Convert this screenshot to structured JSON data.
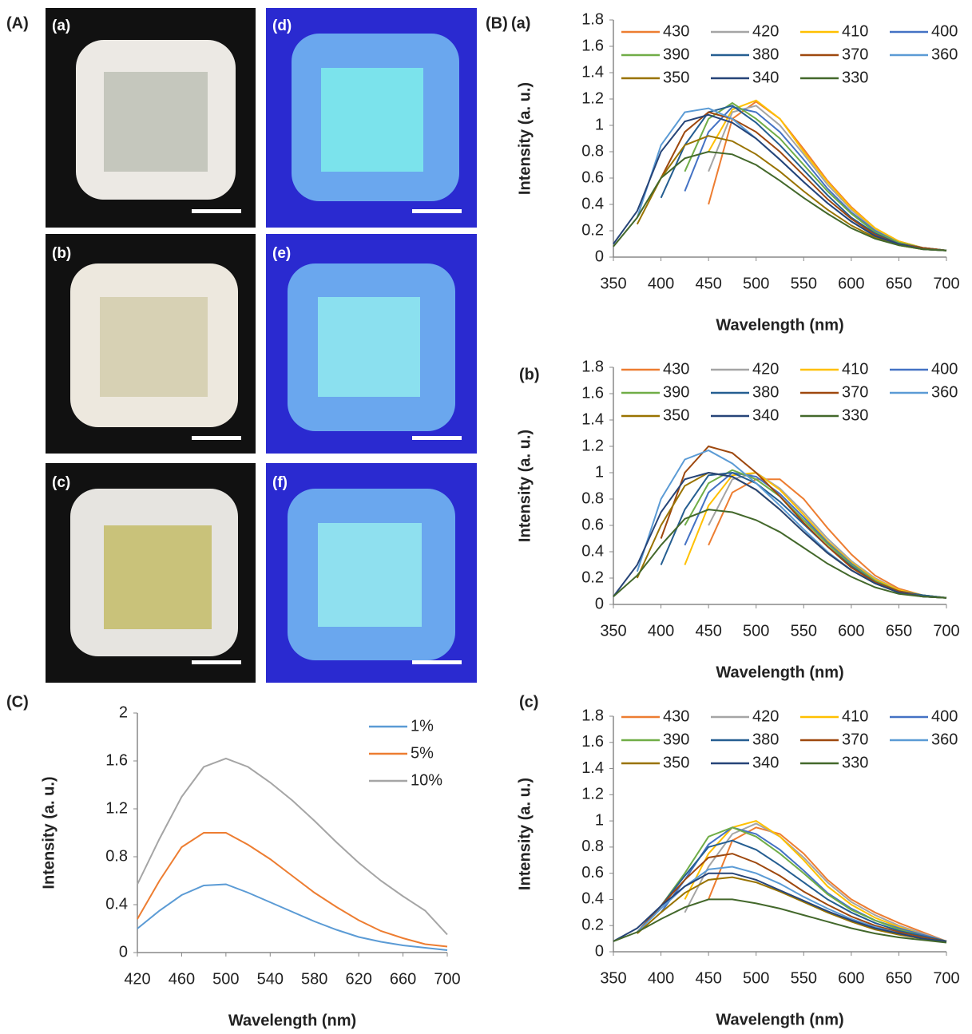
{
  "labels": {
    "panel_A": "(A)",
    "panel_B": "(B)",
    "panel_C": "(C)"
  },
  "photos": [
    {
      "label": "(a)"
    },
    {
      "label": "(b)"
    },
    {
      "label": "(c)"
    },
    {
      "label": "(d)"
    },
    {
      "label": "(e)"
    },
    {
      "label": "(f)"
    }
  ],
  "chart_data": [
    {
      "type": "line",
      "panel": "(a)",
      "x_label": "Wavelength (nm)",
      "y_label": "Intensity (a. u.)",
      "x": [
        350,
        375,
        400,
        425,
        450,
        475,
        500,
        525,
        550,
        575,
        600,
        625,
        650,
        675,
        700
      ],
      "xlim": [
        350,
        700
      ],
      "xticks": [
        350,
        400,
        450,
        500,
        550,
        600,
        650,
        700
      ],
      "ylim": [
        0,
        1.8
      ],
      "yticks": [
        0,
        0.2,
        0.4,
        0.6,
        0.8,
        1,
        1.2,
        1.4,
        1.6,
        1.8
      ],
      "grid": false,
      "legend": "top",
      "series": [
        {
          "name": "430",
          "color": "#ed7d31",
          "values": [
            null,
            null,
            null,
            null,
            0.4,
            1.05,
            1.18,
            1.05,
            0.82,
            0.58,
            0.38,
            0.22,
            0.12,
            0.07,
            0.05
          ]
        },
        {
          "name": "420",
          "color": "#a5a5a5",
          "values": [
            null,
            null,
            null,
            null,
            0.65,
            1.1,
            1.15,
            1.0,
            0.78,
            0.55,
            0.36,
            0.21,
            0.12,
            0.07,
            0.05
          ]
        },
        {
          "name": "410",
          "color": "#ffc000",
          "values": [
            null,
            null,
            null,
            null,
            0.8,
            1.12,
            1.19,
            1.05,
            0.8,
            0.57,
            0.37,
            0.22,
            0.12,
            0.07,
            0.05
          ]
        },
        {
          "name": "400",
          "color": "#4472c4",
          "values": [
            null,
            null,
            null,
            0.5,
            0.95,
            1.14,
            1.1,
            0.95,
            0.74,
            0.52,
            0.34,
            0.2,
            0.11,
            0.07,
            0.05
          ]
        },
        {
          "name": "390",
          "color": "#70ad47",
          "values": [
            null,
            null,
            null,
            0.65,
            1.05,
            1.17,
            1.05,
            0.9,
            0.7,
            0.5,
            0.33,
            0.19,
            0.11,
            0.07,
            0.05
          ]
        },
        {
          "name": "380",
          "color": "#255e91",
          "values": [
            null,
            null,
            0.45,
            0.85,
            1.1,
            1.15,
            1.02,
            0.85,
            0.66,
            0.47,
            0.3,
            0.18,
            0.1,
            0.07,
            0.05
          ]
        },
        {
          "name": "370",
          "color": "#9e480e",
          "values": [
            null,
            null,
            0.6,
            0.95,
            1.1,
            1.05,
            0.95,
            0.8,
            0.62,
            0.44,
            0.29,
            0.17,
            0.1,
            0.07,
            0.05
          ]
        },
        {
          "name": "360",
          "color": "#5b9bd5",
          "values": [
            null,
            0.3,
            0.85,
            1.1,
            1.13,
            1.05,
            0.9,
            0.74,
            0.57,
            0.41,
            0.27,
            0.16,
            0.1,
            0.06,
            0.05
          ]
        },
        {
          "name": "350",
          "color": "#997300",
          "values": [
            null,
            0.25,
            0.6,
            0.85,
            0.92,
            0.88,
            0.78,
            0.65,
            0.5,
            0.36,
            0.24,
            0.15,
            0.09,
            0.06,
            0.05
          ]
        },
        {
          "name": "340",
          "color": "#264478",
          "values": [
            0.1,
            0.35,
            0.8,
            1.03,
            1.08,
            1.02,
            0.9,
            0.74,
            0.57,
            0.41,
            0.27,
            0.16,
            0.1,
            0.06,
            0.05
          ]
        },
        {
          "name": "330",
          "color": "#43682b",
          "values": [
            0.08,
            0.3,
            0.6,
            0.75,
            0.8,
            0.78,
            0.7,
            0.58,
            0.45,
            0.33,
            0.22,
            0.14,
            0.09,
            0.06,
            0.05
          ]
        }
      ]
    },
    {
      "type": "line",
      "panel": "(b)",
      "x_label": "Wavelength (nm)",
      "y_label": "Intensity (a. u.)",
      "x": [
        350,
        375,
        400,
        425,
        450,
        475,
        500,
        525,
        550,
        575,
        600,
        625,
        650,
        675,
        700
      ],
      "xlim": [
        350,
        700
      ],
      "xticks": [
        350,
        400,
        450,
        500,
        550,
        600,
        650,
        700
      ],
      "ylim": [
        0,
        1.8
      ],
      "yticks": [
        0,
        0.2,
        0.4,
        0.6,
        0.8,
        1,
        1.2,
        1.4,
        1.6,
        1.8
      ],
      "grid": false,
      "legend": "top",
      "series": [
        {
          "name": "430",
          "color": "#ed7d31",
          "values": [
            null,
            null,
            null,
            null,
            0.45,
            0.85,
            0.95,
            0.95,
            0.8,
            0.58,
            0.38,
            0.22,
            0.12,
            0.07,
            0.05
          ]
        },
        {
          "name": "420",
          "color": "#a5a5a5",
          "values": [
            null,
            null,
            null,
            null,
            0.6,
            0.95,
            1.0,
            0.88,
            0.7,
            0.5,
            0.33,
            0.2,
            0.11,
            0.07,
            0.05
          ]
        },
        {
          "name": "410",
          "color": "#ffc000",
          "values": [
            null,
            null,
            null,
            0.3,
            0.75,
            0.98,
            1.0,
            0.87,
            0.68,
            0.48,
            0.32,
            0.19,
            0.11,
            0.07,
            0.05
          ]
        },
        {
          "name": "400",
          "color": "#4472c4",
          "values": [
            null,
            null,
            null,
            0.45,
            0.85,
            1.0,
            0.97,
            0.84,
            0.66,
            0.47,
            0.31,
            0.18,
            0.1,
            0.07,
            0.05
          ]
        },
        {
          "name": "390",
          "color": "#70ad47",
          "values": [
            null,
            null,
            null,
            0.6,
            0.92,
            1.02,
            0.95,
            0.82,
            0.64,
            0.46,
            0.3,
            0.18,
            0.1,
            0.07,
            0.05
          ]
        },
        {
          "name": "380",
          "color": "#255e91",
          "values": [
            null,
            null,
            0.3,
            0.72,
            0.98,
            1.0,
            0.92,
            0.78,
            0.61,
            0.44,
            0.29,
            0.17,
            0.1,
            0.07,
            0.05
          ]
        },
        {
          "name": "370",
          "color": "#9e480e",
          "values": [
            null,
            null,
            0.5,
            1.0,
            1.2,
            1.15,
            1.0,
            0.82,
            0.62,
            0.44,
            0.28,
            0.17,
            0.1,
            0.06,
            0.05
          ]
        },
        {
          "name": "360",
          "color": "#5b9bd5",
          "values": [
            null,
            0.25,
            0.8,
            1.1,
            1.17,
            1.07,
            0.92,
            0.75,
            0.57,
            0.4,
            0.26,
            0.16,
            0.09,
            0.06,
            0.05
          ]
        },
        {
          "name": "350",
          "color": "#997300",
          "values": [
            null,
            0.2,
            0.6,
            0.9,
            1.0,
            0.97,
            0.87,
            0.72,
            0.55,
            0.39,
            0.26,
            0.16,
            0.09,
            0.06,
            0.05
          ]
        },
        {
          "name": "340",
          "color": "#264478",
          "values": [
            0.06,
            0.3,
            0.7,
            0.95,
            1.0,
            0.97,
            0.87,
            0.72,
            0.55,
            0.39,
            0.26,
            0.16,
            0.09,
            0.06,
            0.05
          ]
        },
        {
          "name": "330",
          "color": "#43682b",
          "values": [
            0.06,
            0.22,
            0.45,
            0.65,
            0.72,
            0.7,
            0.64,
            0.55,
            0.43,
            0.31,
            0.21,
            0.13,
            0.08,
            0.06,
            0.05
          ]
        }
      ]
    },
    {
      "type": "line",
      "panel": "(c)",
      "x_label": "Wavelength (nm)",
      "y_label": "Intensity (a. u.)",
      "x": [
        350,
        375,
        400,
        425,
        450,
        475,
        500,
        525,
        550,
        575,
        600,
        625,
        650,
        675,
        700
      ],
      "xlim": [
        350,
        700
      ],
      "xticks": [
        350,
        400,
        450,
        500,
        550,
        600,
        650,
        700
      ],
      "ylim": [
        0,
        1.8
      ],
      "yticks": [
        0,
        0.2,
        0.4,
        0.6,
        0.8,
        1,
        1.2,
        1.4,
        1.6,
        1.8
      ],
      "grid": false,
      "legend": "top",
      "series": [
        {
          "name": "430",
          "color": "#ed7d31",
          "values": [
            null,
            null,
            null,
            null,
            0.4,
            0.85,
            0.95,
            0.9,
            0.75,
            0.55,
            0.4,
            0.3,
            0.22,
            0.15,
            0.08
          ]
        },
        {
          "name": "420",
          "color": "#a5a5a5",
          "values": [
            null,
            null,
            null,
            0.3,
            0.65,
            0.9,
            0.98,
            0.88,
            0.72,
            0.53,
            0.38,
            0.28,
            0.2,
            0.14,
            0.08
          ]
        },
        {
          "name": "410",
          "color": "#ffc000",
          "values": [
            null,
            null,
            null,
            0.4,
            0.75,
            0.95,
            1.0,
            0.88,
            0.7,
            0.5,
            0.36,
            0.26,
            0.19,
            0.13,
            0.08
          ]
        },
        {
          "name": "400",
          "color": "#4472c4",
          "values": [
            null,
            null,
            0.3,
            0.55,
            0.82,
            0.95,
            0.9,
            0.78,
            0.62,
            0.45,
            0.33,
            0.24,
            0.18,
            0.13,
            0.08
          ]
        },
        {
          "name": "390",
          "color": "#70ad47",
          "values": [
            null,
            null,
            0.35,
            0.6,
            0.88,
            0.95,
            0.88,
            0.75,
            0.6,
            0.44,
            0.32,
            0.24,
            0.17,
            0.12,
            0.08
          ]
        },
        {
          "name": "380",
          "color": "#255e91",
          "values": [
            null,
            0.15,
            0.35,
            0.58,
            0.8,
            0.85,
            0.78,
            0.66,
            0.53,
            0.4,
            0.3,
            0.22,
            0.16,
            0.12,
            0.08
          ]
        },
        {
          "name": "370",
          "color": "#9e480e",
          "values": [
            null,
            0.15,
            0.35,
            0.55,
            0.72,
            0.75,
            0.68,
            0.58,
            0.46,
            0.36,
            0.27,
            0.2,
            0.15,
            0.11,
            0.08
          ]
        },
        {
          "name": "360",
          "color": "#5b9bd5",
          "values": [
            null,
            0.15,
            0.33,
            0.5,
            0.63,
            0.65,
            0.6,
            0.52,
            0.42,
            0.33,
            0.25,
            0.19,
            0.14,
            0.1,
            0.08
          ]
        },
        {
          "name": "350",
          "color": "#997300",
          "values": [
            null,
            0.14,
            0.3,
            0.45,
            0.55,
            0.57,
            0.53,
            0.46,
            0.38,
            0.3,
            0.23,
            0.17,
            0.13,
            0.1,
            0.08
          ]
        },
        {
          "name": "340",
          "color": "#264478",
          "values": [
            0.08,
            0.18,
            0.35,
            0.5,
            0.6,
            0.6,
            0.55,
            0.47,
            0.39,
            0.31,
            0.24,
            0.18,
            0.14,
            0.1,
            0.08
          ]
        },
        {
          "name": "330",
          "color": "#43682b",
          "values": [
            0.08,
            0.15,
            0.25,
            0.34,
            0.4,
            0.4,
            0.37,
            0.33,
            0.28,
            0.23,
            0.18,
            0.14,
            0.11,
            0.09,
            0.07
          ]
        }
      ]
    },
    {
      "type": "line",
      "x_label": "Wavelength (nm)",
      "y_label": "Intensity (a. u.)",
      "x": [
        420,
        440,
        460,
        480,
        500,
        520,
        540,
        560,
        580,
        600,
        620,
        640,
        660,
        680,
        700
      ],
      "xlim": [
        420,
        700
      ],
      "xticks": [
        420,
        460,
        500,
        540,
        580,
        620,
        660,
        700
      ],
      "ylim": [
        0,
        2
      ],
      "yticks": [
        0,
        0.4,
        0.8,
        1.2,
        1.6,
        2
      ],
      "grid": false,
      "legend": "right",
      "series": [
        {
          "name": "1%",
          "color": "#5b9bd5",
          "values": [
            0.2,
            0.35,
            0.48,
            0.56,
            0.57,
            0.5,
            0.42,
            0.34,
            0.26,
            0.19,
            0.13,
            0.09,
            0.06,
            0.04,
            0.02
          ]
        },
        {
          "name": "5%",
          "color": "#ed7d31",
          "values": [
            0.28,
            0.6,
            0.88,
            1.0,
            1.0,
            0.9,
            0.78,
            0.64,
            0.5,
            0.38,
            0.27,
            0.18,
            0.12,
            0.07,
            0.05
          ]
        },
        {
          "name": "10%",
          "color": "#a5a5a5",
          "values": [
            0.57,
            0.95,
            1.3,
            1.55,
            1.62,
            1.55,
            1.42,
            1.27,
            1.1,
            0.92,
            0.75,
            0.6,
            0.47,
            0.35,
            0.15
          ]
        }
      ]
    }
  ]
}
